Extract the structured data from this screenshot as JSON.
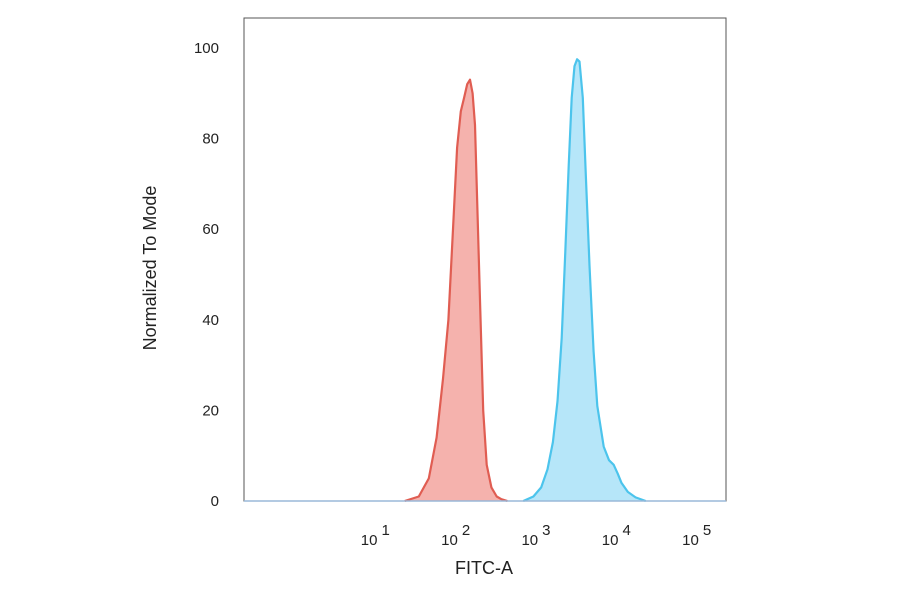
{
  "chart_data": {
    "type": "area",
    "xlabel": "FITC-A",
    "ylabel": "Normalized To Mode",
    "xscale": "log",
    "xlim": [
      0.2,
      200000
    ],
    "ylim": [
      0,
      100
    ],
    "grid": false,
    "x_ticks": [
      {
        "value": 10,
        "base": "10",
        "exp": "1"
      },
      {
        "value": 100,
        "base": "10",
        "exp": "2"
      },
      {
        "value": 1000,
        "base": "10",
        "exp": "3"
      },
      {
        "value": 10000,
        "base": "10",
        "exp": "4"
      },
      {
        "value": 100000,
        "base": "10",
        "exp": "5"
      }
    ],
    "y_ticks": [
      {
        "value": 0,
        "label": "0"
      },
      {
        "value": 20,
        "label": "20"
      },
      {
        "value": 40,
        "label": "40"
      },
      {
        "value": 60,
        "label": "60"
      },
      {
        "value": 80,
        "label": "80"
      },
      {
        "value": 100,
        "label": "100"
      }
    ],
    "series": [
      {
        "color": "#e05d52",
        "fill": "#f4aaa4",
        "x": [
          20,
          30,
          40,
          50,
          60,
          70,
          80,
          90,
          100,
          110,
          120,
          130,
          140,
          150,
          160,
          175,
          190,
          210,
          240,
          280,
          320,
          380
        ],
        "y": [
          0,
          1,
          5,
          14,
          27,
          40,
          60,
          78,
          86,
          89,
          92,
          93,
          90,
          83,
          66,
          42,
          20,
          8,
          3,
          1,
          0.4,
          0
        ]
      },
      {
        "color": "#4cc4ec",
        "fill": "#aee3f8",
        "x": [
          600,
          800,
          1000,
          1200,
          1400,
          1600,
          1800,
          2000,
          2200,
          2400,
          2600,
          2800,
          3000,
          3300,
          3600,
          4000,
          4500,
          5000,
          6000,
          7000,
          8000,
          9000,
          10000,
          12000,
          15000,
          20000
        ],
        "y": [
          0,
          1,
          3,
          7,
          13,
          22,
          36,
          55,
          74,
          89,
          96,
          97.5,
          97,
          89,
          72,
          52,
          33,
          21,
          12,
          9,
          8,
          6,
          4,
          2,
          0.8,
          0
        ]
      }
    ]
  }
}
